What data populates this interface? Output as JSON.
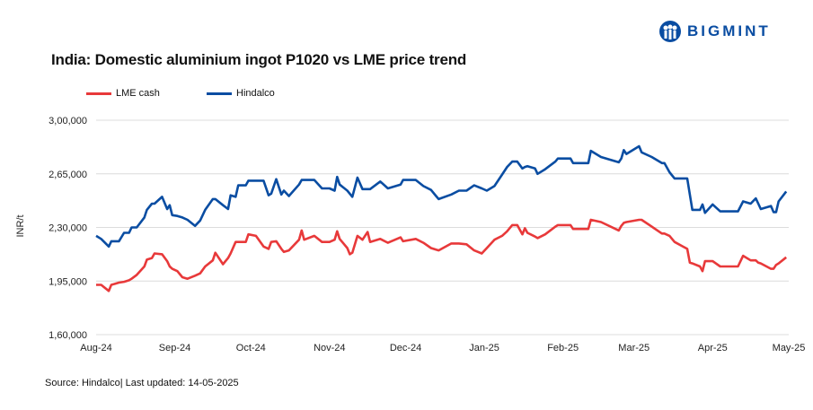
{
  "logo": {
    "text": "BIGMINT",
    "color": "#0a4da2"
  },
  "title": "India: Domestic aluminium ingot P1020 vs LME price trend",
  "source": "Source: Hindalco| Last updated: 14-05-2025",
  "chart_data": {
    "type": "line",
    "title": "India: Domestic aluminium ingot P1020 vs LME price trend",
    "ylabel": "INR/t",
    "xlabel": "",
    "ylim": [
      160000,
      300000
    ],
    "xlim": [
      "2024-08-01",
      "2025-05-01"
    ],
    "y_ticks": [
      "3,00,000",
      "2,65,000",
      "2,30,000",
      "1,95,000",
      "1,60,000"
    ],
    "y_tick_values": [
      300000,
      265000,
      230000,
      195000,
      160000
    ],
    "x_ticks": [
      "Aug-24",
      "Sep-24",
      "Oct-24",
      "Nov-24",
      "Dec-24",
      "Jan-25",
      "Feb-25",
      "Mar-25",
      "Apr-25",
      "May-25"
    ],
    "x_tick_dates": [
      "2024-08-01",
      "2024-09-01",
      "2024-10-01",
      "2024-11-01",
      "2024-12-01",
      "2025-01-01",
      "2025-02-01",
      "2025-03-01",
      "2025-04-01",
      "2025-05-01"
    ],
    "grid": "horizontal",
    "legend_placement": "top-left",
    "x": [
      "2024-08-01",
      "2024-08-03",
      "2024-08-06",
      "2024-08-07",
      "2024-08-10",
      "2024-08-12",
      "2024-08-14",
      "2024-08-15",
      "2024-08-17",
      "2024-08-20",
      "2024-08-21",
      "2024-08-23",
      "2024-08-24",
      "2024-08-27",
      "2024-08-29",
      "2024-08-30",
      "2024-08-31",
      "2024-09-02",
      "2024-09-04",
      "2024-09-06",
      "2024-09-09",
      "2024-09-11",
      "2024-09-13",
      "2024-09-16",
      "2024-09-17",
      "2024-09-20",
      "2024-09-22",
      "2024-09-23",
      "2024-09-25",
      "2024-09-26",
      "2024-09-29",
      "2024-09-30",
      "2024-10-03",
      "2024-10-06",
      "2024-10-08",
      "2024-10-09",
      "2024-10-11",
      "2024-10-13",
      "2024-10-14",
      "2024-10-16",
      "2024-10-20",
      "2024-10-21",
      "2024-10-22",
      "2024-10-26",
      "2024-10-29",
      "2024-11-01",
      "2024-11-03",
      "2024-11-04",
      "2024-11-05",
      "2024-11-08",
      "2024-11-09",
      "2024-11-10",
      "2024-11-12",
      "2024-11-14",
      "2024-11-16",
      "2024-11-17",
      "2024-11-21",
      "2024-11-24",
      "2024-11-29",
      "2024-11-30",
      "2024-12-05",
      "2024-12-08",
      "2024-12-11",
      "2024-12-13",
      "2024-12-14",
      "2024-12-19",
      "2024-12-22",
      "2024-12-25",
      "2024-12-28",
      "2024-12-31",
      "2025-01-02",
      "2025-01-05",
      "2025-01-08",
      "2025-01-10",
      "2025-01-12",
      "2025-01-14",
      "2025-01-16",
      "2025-01-17",
      "2025-01-18",
      "2025-01-21",
      "2025-01-22",
      "2025-01-25",
      "2025-01-29",
      "2025-01-30",
      "2025-02-04",
      "2025-02-05",
      "2025-02-11",
      "2025-02-12",
      "2025-02-16",
      "2025-02-23",
      "2025-02-24",
      "2025-02-25",
      "2025-02-26",
      "2025-03-03",
      "2025-03-04",
      "2025-03-08",
      "2025-03-12",
      "2025-03-13",
      "2025-03-15",
      "2025-03-17",
      "2025-03-22",
      "2025-03-23",
      "2025-03-24",
      "2025-03-27",
      "2025-03-28",
      "2025-03-29",
      "2025-04-01",
      "2025-04-04",
      "2025-04-11",
      "2025-04-13",
      "2025-04-16",
      "2025-04-18",
      "2025-04-19",
      "2025-04-20",
      "2025-04-24",
      "2025-04-25",
      "2025-04-26",
      "2025-04-27",
      "2025-04-30"
    ],
    "series": [
      {
        "name": "LME cash",
        "color": "#e8393a",
        "values": [
          192500,
          192500,
          188500,
          192500,
          194000,
          194500,
          195500,
          196500,
          199000,
          204500,
          209000,
          210000,
          213000,
          212500,
          208000,
          204500,
          203000,
          201500,
          197500,
          196500,
          198500,
          200000,
          204500,
          208500,
          213500,
          206000,
          210000,
          213000,
          220500,
          220500,
          220500,
          225500,
          224500,
          217500,
          216000,
          220500,
          221000,
          216000,
          214000,
          215000,
          222000,
          228000,
          222000,
          224500,
          220500,
          220500,
          222000,
          227500,
          222500,
          216500,
          212500,
          213500,
          224500,
          222000,
          227000,
          220500,
          222500,
          220000,
          223500,
          221000,
          222500,
          220000,
          216500,
          215500,
          215000,
          219500,
          219500,
          219000,
          215000,
          213000,
          216500,
          222000,
          224500,
          227500,
          231500,
          231500,
          225500,
          229500,
          226500,
          224000,
          223000,
          225500,
          230500,
          231500,
          231500,
          229000,
          229000,
          235000,
          233500,
          228000,
          231000,
          233000,
          233500,
          235000,
          235000,
          230500,
          226000,
          226000,
          224500,
          220500,
          216000,
          207000,
          206500,
          204500,
          201500,
          208000,
          208000,
          204500,
          204500,
          211500,
          208500,
          208500,
          207000,
          206500,
          203000,
          203000,
          205500,
          206500,
          210500
        ]
      },
      {
        "name": "Hindalco",
        "color": "#0a4da2",
        "values": [
          224500,
          222500,
          217500,
          221000,
          221000,
          226500,
          226500,
          230000,
          230000,
          236500,
          241500,
          245500,
          245500,
          250000,
          242000,
          244500,
          238000,
          237500,
          236500,
          235000,
          231000,
          234500,
          241500,
          248500,
          248500,
          244500,
          242000,
          251000,
          250000,
          257500,
          257500,
          260500,
          260500,
          260500,
          251000,
          252000,
          261500,
          251500,
          254000,
          250500,
          258000,
          261000,
          261000,
          261000,
          255500,
          255500,
          254000,
          263000,
          258000,
          254000,
          252000,
          250000,
          262500,
          255000,
          255000,
          255000,
          260000,
          255500,
          258000,
          261000,
          261000,
          257000,
          254500,
          250500,
          248500,
          251500,
          254000,
          254000,
          257500,
          255500,
          254000,
          257000,
          264500,
          269500,
          273000,
          273000,
          268500,
          269500,
          270000,
          268500,
          265000,
          268000,
          273000,
          275000,
          275000,
          272000,
          272000,
          280000,
          276000,
          272500,
          275000,
          280500,
          278000,
          283000,
          279000,
          276000,
          272000,
          272000,
          266000,
          262000,
          262000,
          251500,
          241500,
          241500,
          245000,
          239500,
          245000,
          240500,
          240500,
          247000,
          245500,
          249000,
          245500,
          242000,
          244000,
          240000,
          240000,
          247000,
          253500
        ]
      }
    ]
  }
}
